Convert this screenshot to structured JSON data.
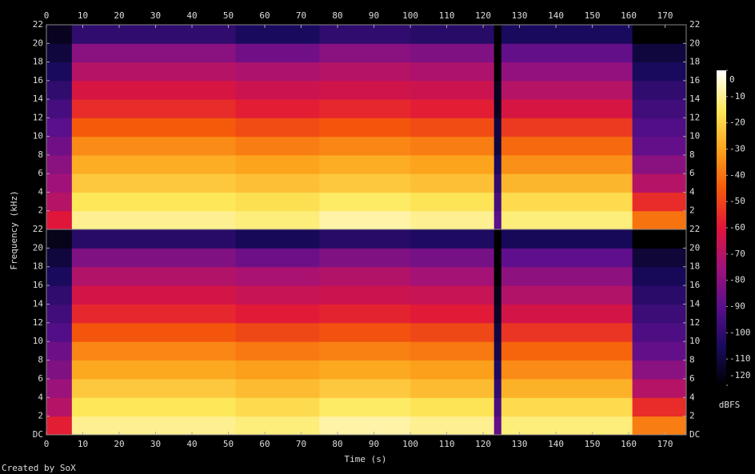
{
  "chart_data": {
    "type": "spectrogram",
    "x_label": "Time (s)",
    "y_label": "Frequency (kHz)",
    "colorbar_label": "dBFS",
    "footer": "Created by SoX",
    "xlim": [
      0,
      175.8
    ],
    "xticks": [
      0,
      10,
      20,
      30,
      40,
      50,
      60,
      70,
      80,
      90,
      100,
      110,
      120,
      130,
      140,
      150,
      160,
      170
    ],
    "ylim": [
      0,
      22
    ],
    "time_edges": [
      0,
      7,
      52,
      75,
      100,
      123,
      125,
      161,
      175.8
    ],
    "freq_edges": [
      0,
      2,
      4,
      6,
      8,
      10,
      12,
      14,
      16,
      18,
      20,
      22
    ],
    "channels": [
      {
        "yticks": [
          2,
          4,
          6,
          8,
          10,
          12,
          14,
          16,
          18,
          20,
          22
        ],
        "values": [
          [
            -60,
            -70,
            -75,
            -80,
            -85,
            -90,
            -95,
            -100,
            -105,
            -110,
            -115
          ],
          [
            -10,
            -15,
            -22,
            -28,
            -35,
            -45,
            -55,
            -62,
            -70,
            -80,
            -100
          ],
          [
            -12,
            -17,
            -24,
            -30,
            -38,
            -48,
            -58,
            -65,
            -72,
            -85,
            -105
          ],
          [
            -8,
            -14,
            -22,
            -28,
            -36,
            -46,
            -56,
            -64,
            -70,
            -80,
            -100
          ],
          [
            -10,
            -16,
            -24,
            -30,
            -38,
            -48,
            -58,
            -65,
            -72,
            -82,
            -102
          ],
          [
            -90,
            -95,
            -100,
            -105,
            -110,
            -110,
            -115,
            -115,
            -120,
            -120,
            -120
          ],
          [
            -12,
            -18,
            -26,
            -34,
            -42,
            -52,
            -62,
            -70,
            -78,
            -88,
            -105
          ],
          [
            -40,
            -55,
            -70,
            -80,
            -88,
            -92,
            -96,
            -100,
            -105,
            -110,
            -120
          ]
        ]
      },
      {
        "yticks": [
          {
            "value": 0,
            "label": "DC"
          },
          2,
          4,
          6,
          8,
          10,
          12,
          14,
          16,
          18,
          20,
          22
        ],
        "values": [
          [
            -58,
            -70,
            -76,
            -82,
            -86,
            -92,
            -96,
            -100,
            -105,
            -110,
            -116
          ],
          [
            -10,
            -15,
            -22,
            -29,
            -36,
            -46,
            -56,
            -63,
            -71,
            -82,
            -102
          ],
          [
            -12,
            -18,
            -25,
            -31,
            -39,
            -49,
            -59,
            -66,
            -73,
            -86,
            -106
          ],
          [
            -8,
            -14,
            -22,
            -29,
            -37,
            -47,
            -57,
            -65,
            -71,
            -82,
            -102
          ],
          [
            -10,
            -16,
            -25,
            -31,
            -39,
            -49,
            -59,
            -66,
            -74,
            -84,
            -104
          ],
          [
            -88,
            -94,
            -100,
            -104,
            -108,
            -110,
            -114,
            -116,
            -120,
            -120,
            -120
          ],
          [
            -12,
            -18,
            -27,
            -35,
            -43,
            -53,
            -63,
            -71,
            -79,
            -89,
            -106
          ],
          [
            -38,
            -55,
            -70,
            -80,
            -88,
            -93,
            -97,
            -101,
            -106,
            -111,
            -120
          ]
        ]
      }
    ],
    "clim": [
      -120,
      0
    ],
    "cticks": [
      0,
      -10,
      -20,
      -30,
      -40,
      -50,
      -60,
      -70,
      -80,
      -90,
      -100,
      -110,
      -120
    ],
    "colorscale": [
      "#000000",
      "#1a0a5e",
      "#5a0f8c",
      "#a0127a",
      "#e0153a",
      "#f55a0a",
      "#fca41c",
      "#fde85a",
      "#ffffff"
    ]
  }
}
